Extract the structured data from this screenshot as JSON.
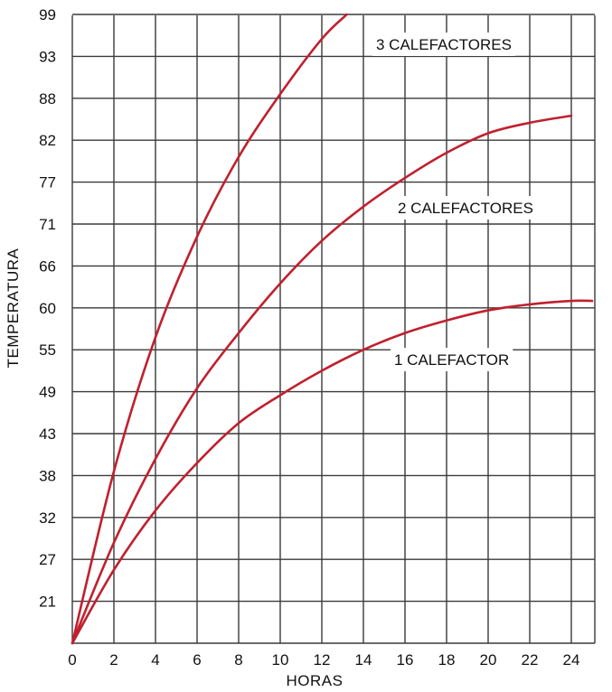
{
  "chart_data": {
    "type": "line",
    "xlabel": "HORAS",
    "ylabel": "TEMPERATURA",
    "x_ticks": [
      "0",
      "2",
      "4",
      "6",
      "8",
      "10",
      "12",
      "14",
      "16",
      "18",
      "20",
      "22",
      "24"
    ],
    "y_ticks": [
      "21",
      "27",
      "32",
      "38",
      "43",
      "49",
      "55",
      "60",
      "66",
      "71",
      "77",
      "82",
      "88",
      "93",
      "99"
    ],
    "grid": true,
    "line_color": "#c0202e",
    "series": [
      {
        "name": "3 CALEFACTORES",
        "x": [
          0,
          2,
          4,
          6,
          8,
          10,
          12,
          13.2
        ],
        "y": [
          15.5,
          38.5,
          56.5,
          69.5,
          80,
          88.5,
          95.5,
          99
        ]
      },
      {
        "name": "2 CALEFACTORES",
        "x": [
          0,
          2,
          4,
          6,
          8,
          10,
          12,
          14,
          16,
          18,
          20,
          22,
          24
        ],
        "y": [
          15.5,
          29,
          40,
          49.5,
          57,
          63.5,
          69,
          73.5,
          77.5,
          80.5,
          83,
          84.5,
          85.5
        ]
      },
      {
        "name": "1 CALEFACTOR",
        "x": [
          0,
          2,
          4,
          6,
          8,
          10,
          12,
          14,
          16,
          18,
          20,
          22,
          24,
          25
        ],
        "y": [
          15.5,
          25.5,
          33,
          39.5,
          44.5,
          48.5,
          52,
          55,
          57,
          58.5,
          59.7,
          60.5,
          61,
          61
        ]
      }
    ]
  }
}
